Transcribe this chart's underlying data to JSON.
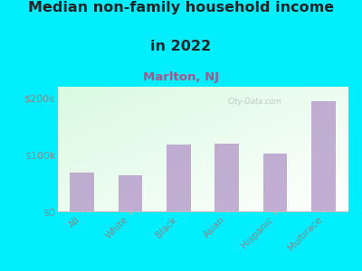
{
  "title_line1": "Median non-family household income",
  "title_line2": "in 2022",
  "subtitle": "Marlton, NJ",
  "categories": [
    "All",
    "White",
    "Black",
    "Asian",
    "Hispanic",
    "Multirace"
  ],
  "values": [
    68000,
    63000,
    118000,
    120000,
    102000,
    195000
  ],
  "bar_color": "#b8a0cc",
  "background_outer": "#00eeff",
  "yticks": [
    0,
    100000,
    200000
  ],
  "ytick_labels": [
    "$0",
    "$100k",
    "$200k"
  ],
  "ylim": [
    0,
    220000
  ],
  "title_fontsize": 11.5,
  "subtitle_fontsize": 9.5,
  "subtitle_color": "#aa5588",
  "tick_label_color": "#888888",
  "title_color": "#222222"
}
